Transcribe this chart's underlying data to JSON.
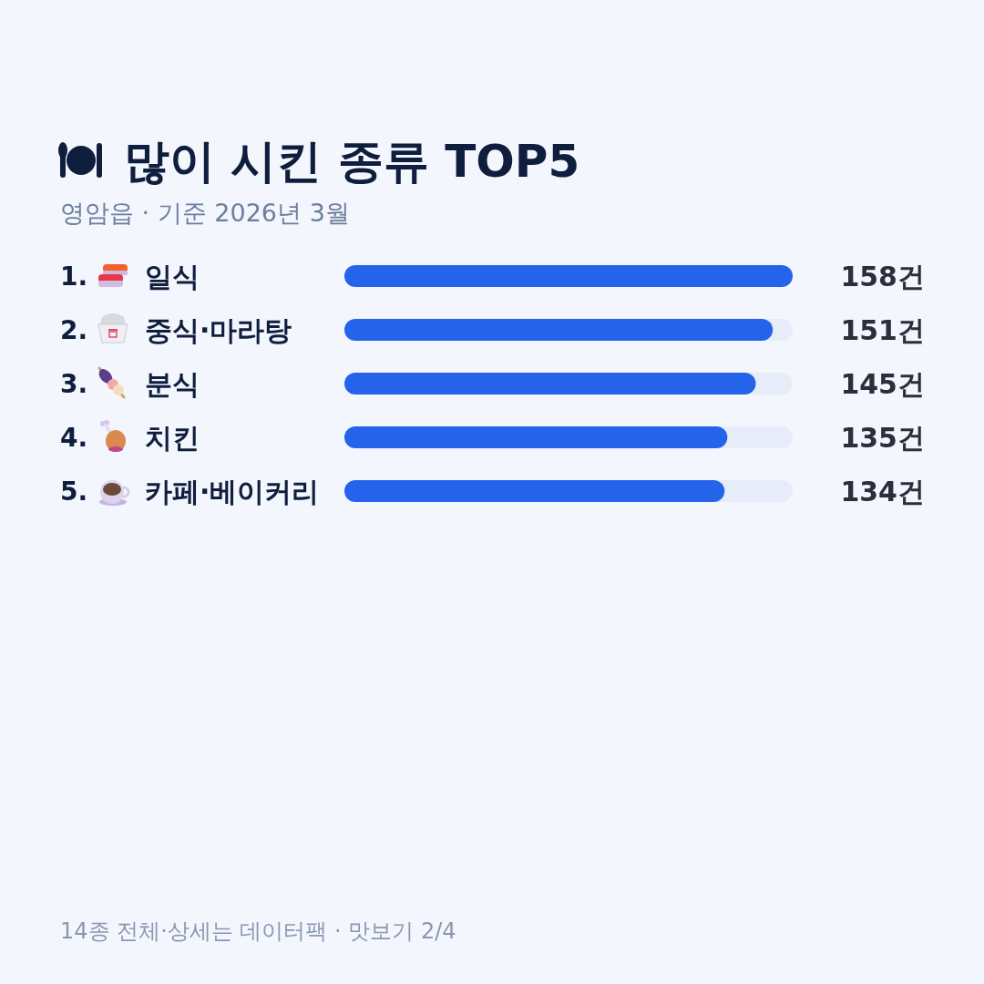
{
  "chart_data": {
    "type": "bar",
    "orientation": "horizontal",
    "title": "많이 시킨 종류 TOP5",
    "subtitle": "영암읍 · 기준 2026년 3월",
    "categories": [
      "일식",
      "중식·마라탕",
      "분식",
      "치킨",
      "카페·베이커리"
    ],
    "values": [
      158,
      151,
      145,
      135,
      134
    ],
    "value_labels": [
      "158건",
      "151건",
      "145건",
      "135건",
      "134건"
    ],
    "color": "#2563eb",
    "annotations": [
      "1.",
      "2.",
      "3.",
      "4.",
      "5.",
      "14종 전체·상세는 데이터팩 · 맛보기 2/4"
    ]
  }
}
